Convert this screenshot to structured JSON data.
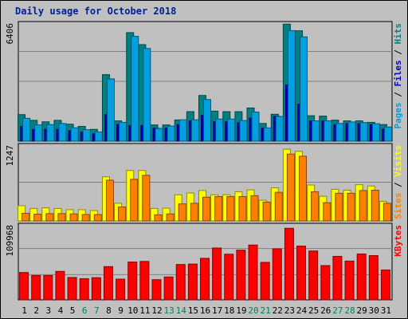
{
  "title": "Daily usage for October 2018",
  "chart_data": [
    {
      "type": "bar",
      "panel": "pages-files-hits",
      "y_label_max": "6406",
      "ylim": [
        0,
        6406
      ],
      "legend": [
        {
          "name": "Pages",
          "color": "#00a0e0"
        },
        {
          "name": "Files",
          "color": "#0000c0"
        },
        {
          "name": "Hits",
          "color": "#008080"
        }
      ],
      "categories": [
        "1",
        "2",
        "3",
        "4",
        "5",
        "6",
        "7",
        "8",
        "9",
        "10",
        "11",
        "12",
        "13",
        "14",
        "15",
        "16",
        "17",
        "18",
        "19",
        "20",
        "21",
        "22",
        "23",
        "24",
        "25",
        "26",
        "27",
        "28",
        "29",
        "30",
        "31"
      ],
      "series": [
        {
          "name": "Hits",
          "color": "#008080",
          "values": [
            1440,
            1130,
            1050,
            1130,
            920,
            800,
            640,
            3610,
            1100,
            5890,
            5240,
            880,
            880,
            1150,
            1600,
            2480,
            1630,
            1600,
            1600,
            1800,
            960,
            1460,
            6350,
            5990,
            1380,
            1360,
            1140,
            1100,
            1100,
            1020,
            900
          ]
        },
        {
          "name": "Files",
          "color": "#0000c0",
          "values": [
            800,
            640,
            640,
            640,
            560,
            500,
            400,
            1440,
            900,
            850,
            850,
            700,
            700,
            900,
            1100,
            1400,
            1050,
            1050,
            1000,
            1250,
            700,
            1350,
            3050,
            2000,
            1100,
            1100,
            900,
            950,
            950,
            900,
            650
          ]
        },
        {
          "name": "Pages",
          "color": "#00a0e0",
          "values": [
            1240,
            880,
            900,
            960,
            730,
            620,
            500,
            3380,
            1020,
            5690,
            5030,
            690,
            820,
            1160,
            1160,
            2260,
            1200,
            1200,
            1120,
            1580,
            720,
            1340,
            6000,
            5660,
            1100,
            1100,
            960,
            1040,
            1010,
            950,
            770
          ]
        }
      ]
    },
    {
      "type": "bar",
      "panel": "visits-sites",
      "y_label_max": "1247",
      "ylim": [
        0,
        1247
      ],
      "legend": [
        {
          "name": "Sites",
          "color": "#ff8000"
        },
        {
          "name": "Visits",
          "color": "#ffff00"
        }
      ],
      "series": [
        {
          "name": "Visits",
          "color": "#ffff00",
          "values": [
            250,
            205,
            215,
            205,
            185,
            185,
            170,
            725,
            290,
            830,
            830,
            205,
            210,
            430,
            460,
            500,
            430,
            430,
            480,
            510,
            340,
            545,
            1180,
            1145,
            590,
            405,
            520,
            505,
            595,
            575,
            320
          ]
        },
        {
          "name": "Sites",
          "color": "#ff8000",
          "values": [
            125,
            110,
            120,
            120,
            115,
            105,
            105,
            670,
            230,
            685,
            750,
            100,
            115,
            280,
            290,
            390,
            400,
            400,
            400,
            415,
            310,
            470,
            1100,
            1065,
            480,
            300,
            455,
            455,
            500,
            505,
            290
          ]
        }
      ]
    },
    {
      "type": "bar",
      "panel": "kbytes",
      "y_label_max": "109968",
      "ylim": [
        0,
        109968
      ],
      "legend": [
        {
          "name": "KBytes",
          "color": "#ff0000"
        }
      ],
      "series": [
        {
          "name": "KBytes",
          "color": "#ff0000",
          "values": [
            40100,
            35800,
            35800,
            41800,
            32800,
            31100,
            32500,
            48800,
            30400,
            55500,
            56400,
            29600,
            33600,
            51900,
            52500,
            60900,
            76100,
            67000,
            72900,
            80400,
            55000,
            74800,
            105000,
            78900,
            71700,
            50300,
            63800,
            56900,
            67300,
            64900,
            43800
          ]
        }
      ]
    }
  ]
}
